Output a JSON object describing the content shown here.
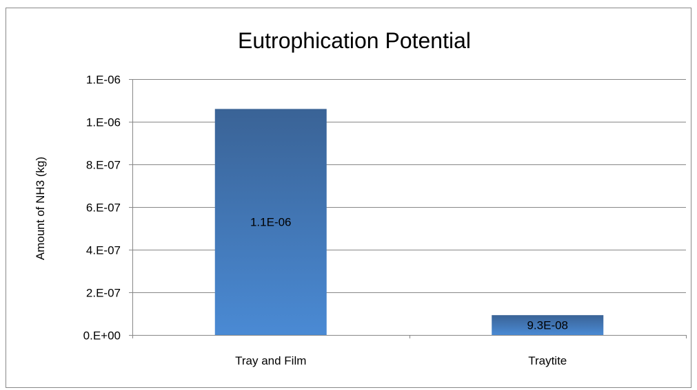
{
  "chart_data": {
    "type": "bar",
    "title": "Eutrophication Potential",
    "xlabel": "",
    "ylabel": "Amount of NH3 (kg)",
    "categories": [
      "Tray and Film",
      "Traytite"
    ],
    "values": [
      1.06e-06,
      9.3e-08
    ],
    "data_labels": [
      "1.1E-06",
      "9.3E-08"
    ],
    "ylim": [
      0,
      1.2e-06
    ],
    "yticks": [
      0,
      2e-07,
      4e-07,
      6e-07,
      8e-07,
      1e-06,
      1.2e-06
    ],
    "ytick_labels": [
      "0.E+00",
      "2.E-07",
      "4.E-07",
      "6.E-07",
      "8.E-07",
      "1.E-06",
      "1.E-06"
    ],
    "grid": true,
    "legend": "none",
    "bar_color_top": "#3a6396",
    "bar_color_bottom": "#4a8ad4"
  }
}
